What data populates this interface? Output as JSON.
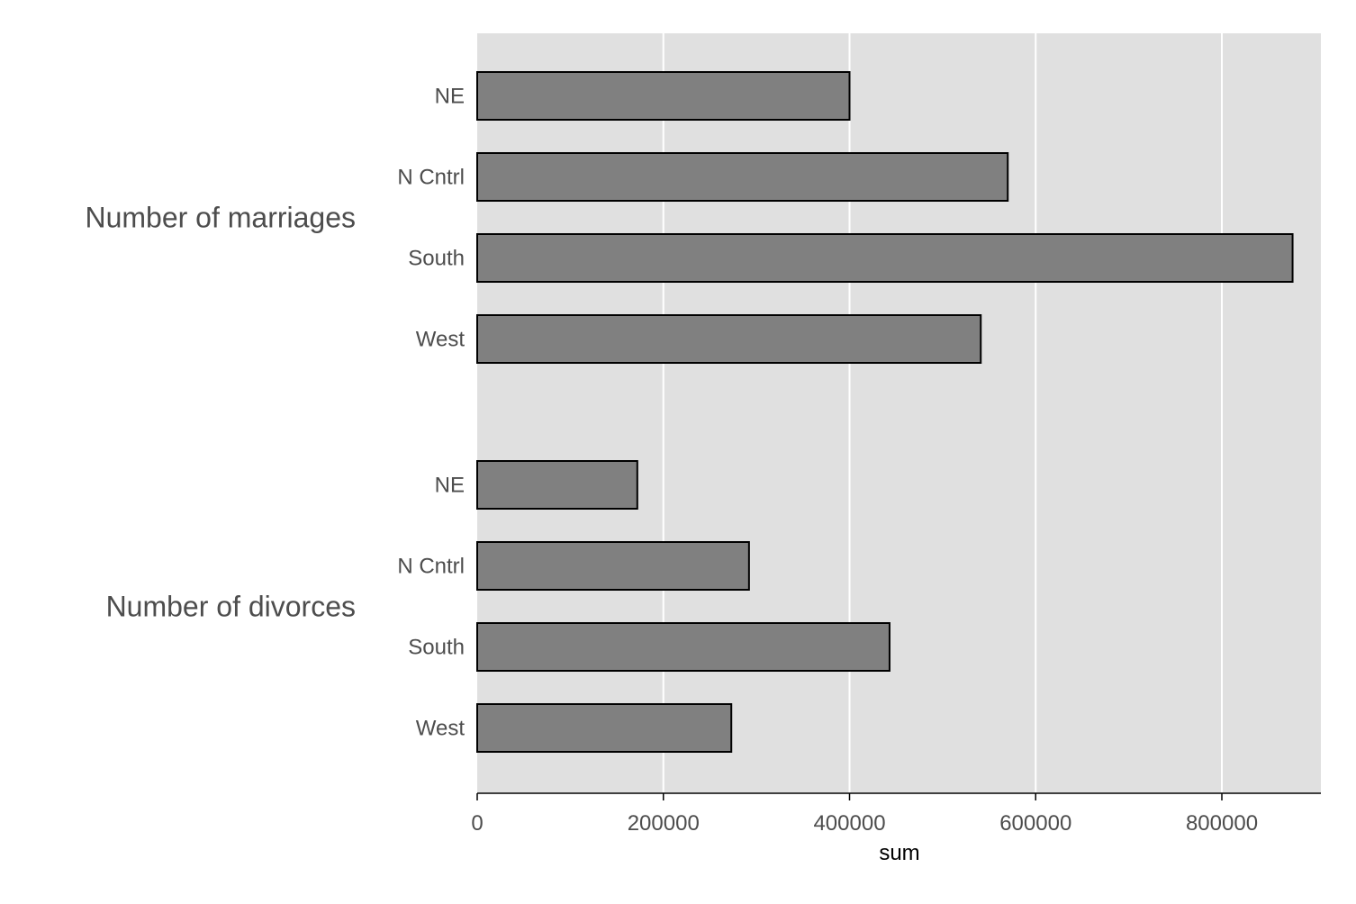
{
  "chart_data": {
    "type": "bar",
    "orientation": "horizontal",
    "xlabel": "sum",
    "xlim": [
      0,
      900000
    ],
    "x_ticks": [
      "0",
      "200000",
      "400000",
      "600000",
      "800000"
    ],
    "x_tick_values": [
      0,
      200000,
      400000,
      600000,
      800000
    ],
    "grid": true,
    "bar_color": "#808080",
    "background_color": "#e0e0e0",
    "groups": [
      {
        "name": "Number of marriages",
        "categories": [
          "NE",
          "N Cntrl",
          "South",
          "West"
        ],
        "values": [
          400000,
          570000,
          876000,
          541000
        ]
      },
      {
        "name": "Number of divorces",
        "categories": [
          "NE",
          "N Cntrl",
          "South",
          "West"
        ],
        "values": [
          172000,
          292000,
          443000,
          273000
        ]
      }
    ]
  }
}
